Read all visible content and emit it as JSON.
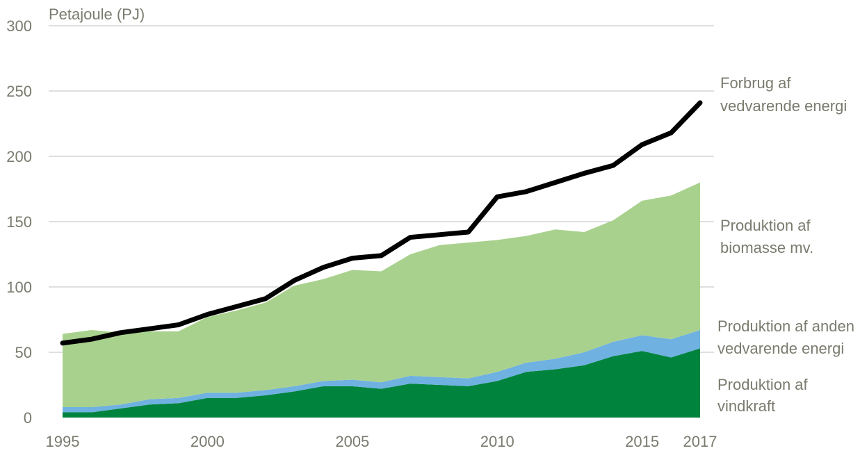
{
  "chart_data": {
    "type": "area",
    "ylabel": "Petajoule (PJ)",
    "ylim": [
      0,
      300
    ],
    "yticks": [
      0,
      50,
      100,
      150,
      200,
      250,
      300
    ],
    "xlim": [
      1995,
      2017
    ],
    "xticks": [
      "1995",
      "2000",
      "2005",
      "2010",
      "2015",
      "2017"
    ],
    "grid": true,
    "legend": "inline-right",
    "x": [
      1995,
      1996,
      1997,
      1998,
      1999,
      2000,
      2001,
      2002,
      2003,
      2004,
      2005,
      2006,
      2007,
      2008,
      2009,
      2010,
      2011,
      2012,
      2013,
      2014,
      2015,
      2016,
      2017
    ],
    "series": [
      {
        "name": "Produktion af vindkraft",
        "kind": "stacked-area",
        "color": "#00843d",
        "values": [
          4,
          4,
          7,
          10,
          11,
          15,
          15,
          17,
          20,
          24,
          24,
          22,
          26,
          25,
          24,
          28,
          35,
          37,
          40,
          47,
          51,
          46,
          53
        ]
      },
      {
        "name": "Produktion af anden vedvarende energi",
        "kind": "stacked-area",
        "color": "#6fb1e1",
        "values": [
          4,
          4,
          3,
          4,
          4,
          4,
          4,
          4,
          4,
          4,
          5,
          5,
          6,
          6,
          6,
          7,
          7,
          8,
          10,
          11,
          12,
          14,
          14
        ]
      },
      {
        "name": "Produktion af biomasse mv.",
        "kind": "stacked-area",
        "color": "#a9d18e",
        "values": [
          56,
          59,
          55,
          52,
          51,
          58,
          63,
          67,
          77,
          78,
          84,
          85,
          93,
          101,
          104,
          101,
          97,
          99,
          92,
          93,
          103,
          110,
          113
        ]
      },
      {
        "name": "Forbrug af vedvarende energi",
        "kind": "line",
        "color": "#000000",
        "values": [
          57,
          60,
          65,
          68,
          71,
          79,
          85,
          91,
          105,
          115,
          122,
          124,
          138,
          140,
          142,
          169,
          173,
          180,
          187,
          193,
          209,
          218,
          241
        ]
      }
    ]
  },
  "labels": {
    "consumption": [
      "Forbrug af",
      "vedvarende energi"
    ],
    "biomass": [
      "Produktion af",
      "biomasse mv."
    ],
    "other": [
      "Produktion af anden",
      "vedvarende energi"
    ],
    "wind": [
      "Produktion af",
      "vindkraft"
    ]
  }
}
